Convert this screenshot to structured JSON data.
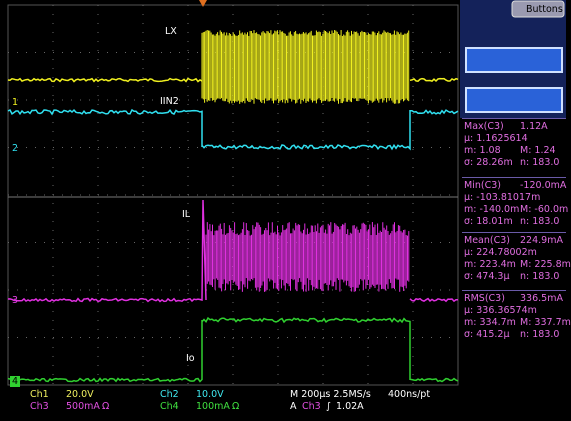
{
  "header": {
    "button": "Buttons"
  },
  "traces": [
    {
      "label": "LX"
    },
    {
      "label": "IIN2"
    },
    {
      "label": "IL"
    },
    {
      "label": "Io"
    }
  ],
  "markers": [
    "1",
    "2",
    "3",
    "4"
  ],
  "measurements": [
    {
      "name": "Max(C3)",
      "value": "1.12A",
      "rows": [
        [
          "μ: 1.1625614"
        ],
        [
          "m: 1.08",
          "M: 1.24"
        ],
        [
          "σ: 28.26m",
          "n: 183.0"
        ]
      ]
    },
    {
      "name": "Min(C3)",
      "value": "-120.0mA",
      "rows": [
        [
          "μ: -103.81017m"
        ],
        [
          "m: -140.0m",
          "M: -60.0m"
        ],
        [
          "σ: 18.01m",
          "n: 183.0"
        ]
      ]
    },
    {
      "name": "Mean(C3)",
      "value": "224.9mA",
      "rows": [
        [
          "μ: 224.78002m"
        ],
        [
          "m: 223.4m",
          "M: 225.8m"
        ],
        [
          "σ: 474.3μ",
          "n: 183.0"
        ]
      ]
    },
    {
      "name": "RMS(C3)",
      "value": "336.5mA",
      "rows": [
        [
          "μ: 336.36574m"
        ],
        [
          "m: 334.7m",
          "M: 337.7m"
        ],
        [
          "σ: 415.2μ",
          "n: 183.0"
        ]
      ]
    }
  ],
  "footer": {
    "ch1": "Ch1",
    "ch1_scale": "20.0V",
    "ch2": "Ch2",
    "ch2_scale": "10.0V",
    "timebase": "M 200μs 2.5MS/s",
    "resolution": "400ns/pt",
    "ch3": "Ch3",
    "ch3_scale": "500mA",
    "ch3_imp": "Ω",
    "ch4": "Ch4",
    "ch4_scale": "100mA",
    "ch4_imp": "Ω",
    "trigger": "A",
    "trigger_src": "Ch3",
    "trigger_slope": "∫",
    "trigger_level": "1.02A"
  }
}
